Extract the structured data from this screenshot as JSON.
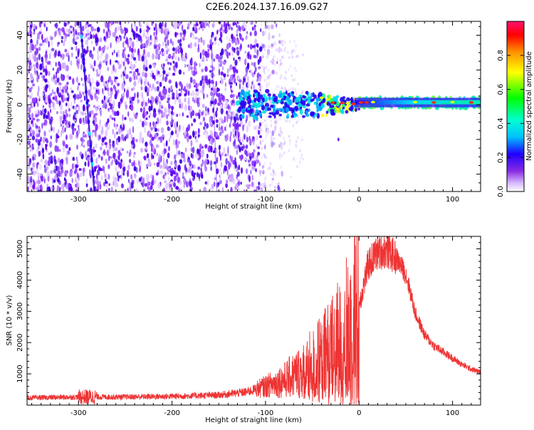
{
  "title": "C2E6.2024.137.16.09.G27",
  "chart_data": [
    {
      "type": "heatmap",
      "title": "",
      "xlabel": "Height of straight line (km)",
      "ylabel": "Frequency (Hz)",
      "xlim": [
        -355,
        130
      ],
      "ylim": [
        -50,
        48
      ],
      "xticks": [
        -300,
        -200,
        -100,
        0,
        100
      ],
      "yticks": [
        -40,
        -20,
        0,
        20,
        40
      ],
      "colorbar": {
        "label": "Normalized spectral amplitude",
        "range": [
          0,
          1
        ],
        "ticks": [
          "0.0",
          "0.2",
          "0.4",
          "0.6",
          "0.8"
        ],
        "colors": [
          "#ffffff",
          "#c080ff",
          "#6600ff",
          "#0000ff",
          "#00ffff",
          "#00ff00",
          "#ffff00",
          "#ff8800",
          "#ff0000",
          "#ff0080"
        ]
      },
      "features": [
        {
          "name": "noise field",
          "x_range": [
            -355,
            -105
          ],
          "freq_range": [
            -50,
            48
          ],
          "amplitude": 0.1
        },
        {
          "name": "diagonal trace",
          "x_start": -298,
          "freq_start": 48,
          "x_end": -283,
          "freq_end": -50,
          "amplitude": 0.2
        },
        {
          "name": "signal band",
          "x_range": [
            -130,
            130
          ],
          "center_freq": 0,
          "amplitude": 0.5
        }
      ]
    },
    {
      "type": "line",
      "title": "",
      "xlabel": "Height of straight line (km)",
      "ylabel": "SNR (10 * v/v)",
      "xlim": [
        -355,
        130
      ],
      "ylim": [
        0,
        5400
      ],
      "xticks": [
        -300,
        -200,
        -100,
        0,
        100
      ],
      "yticks": [
        1000,
        2000,
        3000,
        4000,
        5000
      ],
      "series": [
        {
          "name": "SNR",
          "color": "#ee3333",
          "x": [
            -355,
            -300,
            -250,
            -200,
            -150,
            -120,
            -100,
            -80,
            -60,
            -40,
            -20,
            -10,
            0,
            10,
            20,
            30,
            40,
            50,
            55,
            60,
            70,
            80,
            90,
            100,
            110,
            120,
            130
          ],
          "y": [
            230,
            260,
            260,
            280,
            320,
            420,
            600,
            800,
            1100,
            1500,
            2000,
            2400,
            3200,
            4500,
            4900,
            4950,
            4700,
            4200,
            3600,
            2950,
            2250,
            1900,
            1700,
            1500,
            1300,
            1150,
            1050
          ]
        }
      ]
    }
  ]
}
